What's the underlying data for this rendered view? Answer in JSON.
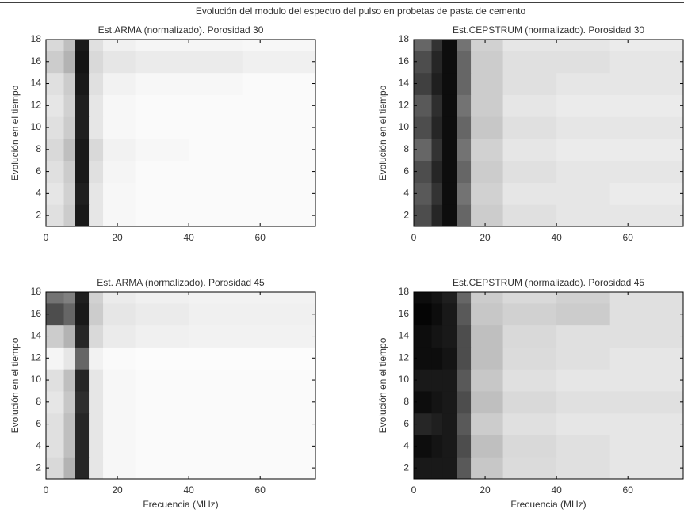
{
  "title": "Evolución del modulo del espectro del pulso en probetas de pasta de cemento",
  "chart_data": [
    {
      "type": "heatmap",
      "title": "Est.ARMA (normalizado). Porosidad 30",
      "ylabel": "Evolución en el tiempo",
      "colormap": "gray_r",
      "xbins": [
        0,
        5,
        8,
        12,
        16,
        25,
        40,
        55,
        75.5
      ],
      "ybins": [
        1,
        3,
        5,
        7,
        9,
        11,
        13,
        15,
        17,
        18
      ],
      "xlim": [
        0,
        75.5
      ],
      "ylim": [
        1,
        18
      ],
      "xticks": [
        0,
        20,
        40,
        60
      ],
      "yticks": [
        2,
        4,
        6,
        8,
        10,
        12,
        14,
        16,
        18
      ],
      "values": [
        [
          0.12,
          0.2,
          0.9,
          0.1,
          0.03,
          0.02,
          0.02,
          0.02
        ],
        [
          0.1,
          0.18,
          0.88,
          0.1,
          0.03,
          0.02,
          0.02,
          0.02
        ],
        [
          0.12,
          0.2,
          0.9,
          0.12,
          0.04,
          0.02,
          0.02,
          0.02
        ],
        [
          0.15,
          0.25,
          0.9,
          0.15,
          0.05,
          0.03,
          0.02,
          0.02
        ],
        [
          0.12,
          0.2,
          0.88,
          0.1,
          0.03,
          0.02,
          0.02,
          0.02
        ],
        [
          0.1,
          0.18,
          0.88,
          0.1,
          0.03,
          0.02,
          0.02,
          0.02
        ],
        [
          0.12,
          0.2,
          0.9,
          0.12,
          0.05,
          0.03,
          0.03,
          0.02
        ],
        [
          0.2,
          0.3,
          0.92,
          0.15,
          0.1,
          0.08,
          0.08,
          0.06
        ],
        [
          0.15,
          0.25,
          0.9,
          0.12,
          0.06,
          0.04,
          0.04,
          0.03
        ]
      ]
    },
    {
      "type": "heatmap",
      "title": "Est.CEPSTRUM (normalizado). Porosidad 30",
      "ylabel": "Evolución en el tiempo",
      "colormap": "gray_r",
      "xbins": [
        0,
        5,
        8,
        12,
        16,
        25,
        40,
        55,
        75.5
      ],
      "ybins": [
        1,
        3,
        5,
        7,
        9,
        11,
        13,
        15,
        17,
        18
      ],
      "xlim": [
        0,
        75.5
      ],
      "ylim": [
        1,
        18
      ],
      "xticks": [
        0,
        20,
        40,
        60
      ],
      "yticks": [
        2,
        4,
        6,
        8,
        10,
        12,
        14,
        16,
        18
      ],
      "values": [
        [
          0.7,
          0.85,
          0.95,
          0.6,
          0.2,
          0.12,
          0.1,
          0.1
        ],
        [
          0.65,
          0.8,
          0.95,
          0.55,
          0.18,
          0.1,
          0.1,
          0.08
        ],
        [
          0.7,
          0.85,
          0.95,
          0.6,
          0.2,
          0.12,
          0.1,
          0.1
        ],
        [
          0.6,
          0.8,
          0.95,
          0.55,
          0.18,
          0.1,
          0.08,
          0.08
        ],
        [
          0.7,
          0.85,
          0.95,
          0.6,
          0.22,
          0.12,
          0.1,
          0.1
        ],
        [
          0.65,
          0.82,
          0.95,
          0.55,
          0.2,
          0.1,
          0.08,
          0.08
        ],
        [
          0.75,
          0.88,
          0.95,
          0.6,
          0.2,
          0.12,
          0.1,
          0.1
        ],
        [
          0.7,
          0.85,
          0.95,
          0.6,
          0.2,
          0.12,
          0.12,
          0.1
        ],
        [
          0.6,
          0.8,
          0.95,
          0.55,
          0.18,
          0.1,
          0.1,
          0.08
        ]
      ]
    },
    {
      "type": "heatmap",
      "title": "Est. ARMA (normalizado). Porosidad 45",
      "ylabel": "Evolución en el tiempo",
      "xlabel": "Frecuencia (MHz)",
      "colormap": "gray_r",
      "xbins": [
        0,
        5,
        8,
        12,
        16,
        25,
        40,
        55,
        75.5
      ],
      "ybins": [
        1,
        3,
        5,
        7,
        9,
        11,
        13,
        15,
        17,
        18
      ],
      "xlim": [
        0,
        75.5
      ],
      "ylim": [
        1,
        18
      ],
      "xticks": [
        0,
        20,
        40,
        60
      ],
      "yticks": [
        2,
        4,
        6,
        8,
        10,
        12,
        14,
        16,
        18
      ],
      "values": [
        [
          0.15,
          0.3,
          0.85,
          0.1,
          0.03,
          0.02,
          0.02,
          0.02
        ],
        [
          0.12,
          0.25,
          0.85,
          0.1,
          0.03,
          0.02,
          0.02,
          0.02
        ],
        [
          0.12,
          0.25,
          0.85,
          0.1,
          0.03,
          0.02,
          0.02,
          0.02
        ],
        [
          0.1,
          0.22,
          0.82,
          0.1,
          0.03,
          0.02,
          0.02,
          0.02
        ],
        [
          0.12,
          0.25,
          0.85,
          0.1,
          0.03,
          0.02,
          0.02,
          0.02
        ],
        [
          0.04,
          0.1,
          0.6,
          0.05,
          0.02,
          0.01,
          0.01,
          0.01
        ],
        [
          0.2,
          0.3,
          0.85,
          0.15,
          0.08,
          0.06,
          0.05,
          0.05
        ],
        [
          0.7,
          0.6,
          0.9,
          0.2,
          0.1,
          0.08,
          0.06,
          0.06
        ],
        [
          0.55,
          0.5,
          0.88,
          0.18,
          0.08,
          0.06,
          0.05,
          0.05
        ]
      ]
    },
    {
      "type": "heatmap",
      "title": "Est.CEPSTRUM (normalizado). Porosidad 45",
      "ylabel": "Evolución en el tiempo",
      "xlabel": "Frecuencia (MHz)",
      "colormap": "gray_r",
      "xbins": [
        0,
        5,
        8,
        12,
        16,
        25,
        40,
        55,
        75.5
      ],
      "ybins": [
        1,
        3,
        5,
        7,
        9,
        11,
        13,
        15,
        17,
        18
      ],
      "xlim": [
        0,
        75.5
      ],
      "ylim": [
        1,
        18
      ],
      "xticks": [
        0,
        20,
        40,
        60
      ],
      "yticks": [
        2,
        4,
        6,
        8,
        10,
        12,
        14,
        16,
        18
      ],
      "values": [
        [
          0.9,
          0.9,
          0.9,
          0.65,
          0.22,
          0.14,
          0.12,
          0.1
        ],
        [
          0.95,
          0.92,
          0.9,
          0.7,
          0.25,
          0.15,
          0.12,
          0.1
        ],
        [
          0.85,
          0.88,
          0.9,
          0.65,
          0.2,
          0.12,
          0.1,
          0.1
        ],
        [
          0.95,
          0.92,
          0.9,
          0.7,
          0.25,
          0.15,
          0.12,
          0.12
        ],
        [
          0.9,
          0.9,
          0.9,
          0.65,
          0.22,
          0.12,
          0.1,
          0.1
        ],
        [
          0.95,
          0.95,
          0.92,
          0.7,
          0.25,
          0.14,
          0.12,
          0.1
        ],
        [
          0.95,
          0.92,
          0.9,
          0.7,
          0.25,
          0.15,
          0.12,
          0.12
        ],
        [
          0.98,
          0.95,
          0.9,
          0.65,
          0.22,
          0.18,
          0.2,
          0.12
        ],
        [
          0.95,
          0.92,
          0.88,
          0.6,
          0.2,
          0.15,
          0.18,
          0.12
        ]
      ]
    }
  ]
}
